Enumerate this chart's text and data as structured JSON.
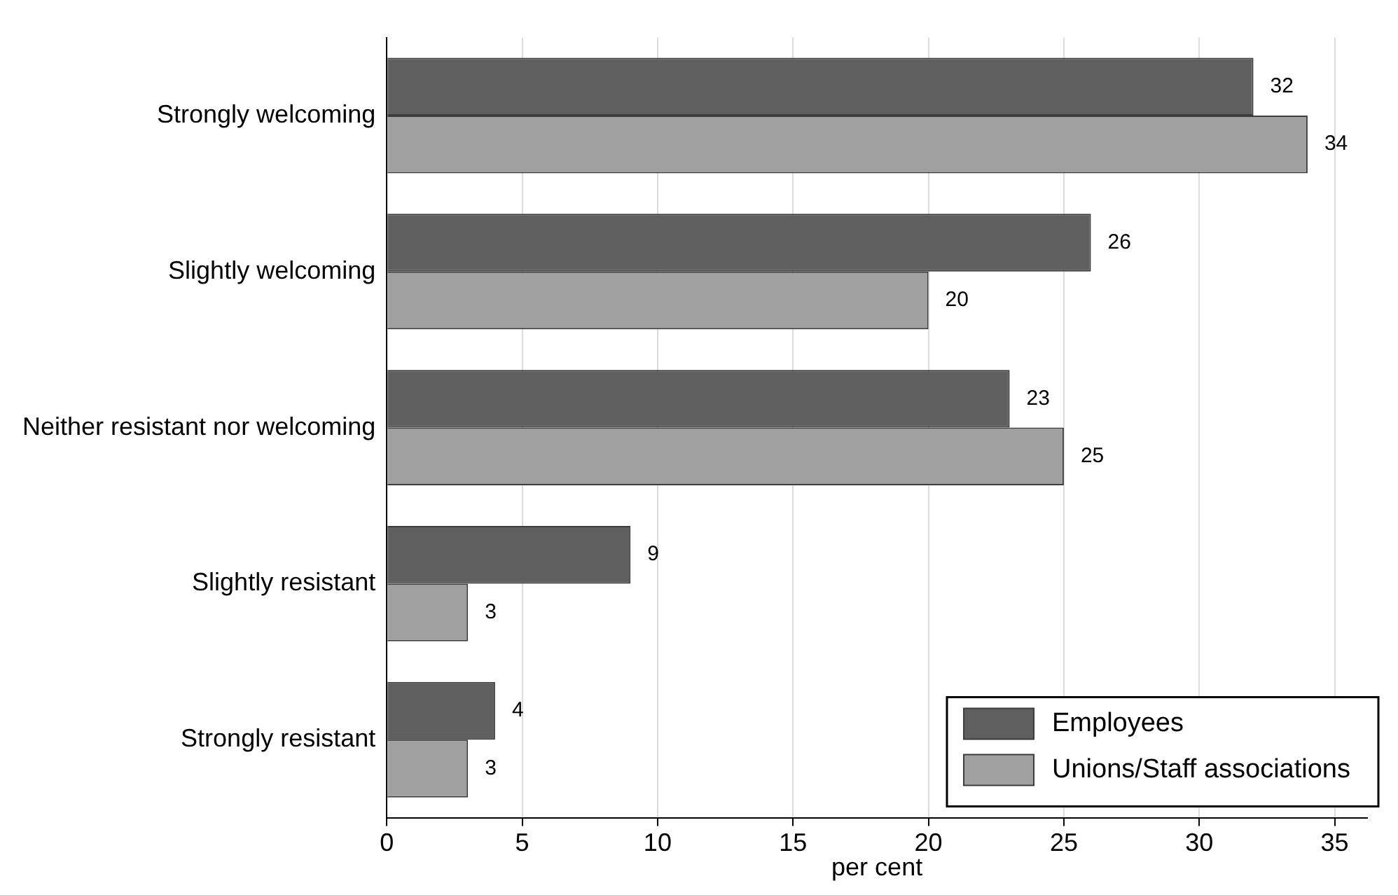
{
  "chart_data": {
    "type": "bar",
    "orientation": "horizontal",
    "xlabel": "per cent",
    "categories": [
      "Strongly welcoming",
      "Slightly welcoming",
      "Neither resistant nor welcoming",
      "Slightly resistant",
      "Strongly resistant"
    ],
    "series": [
      {
        "name": "Employees",
        "color": "#5f5f5f",
        "values": [
          32,
          26,
          23,
          9,
          4
        ]
      },
      {
        "name": "Unions/Staff associations",
        "color": "#a0a0a0",
        "values": [
          34,
          20,
          25,
          3,
          3
        ]
      }
    ],
    "xlim": [
      0,
      36.2
    ],
    "xticks": [
      0,
      5,
      10,
      15,
      20,
      25,
      30,
      35
    ],
    "grid": "x",
    "legend": "bottom right",
    "data_labels": true
  }
}
